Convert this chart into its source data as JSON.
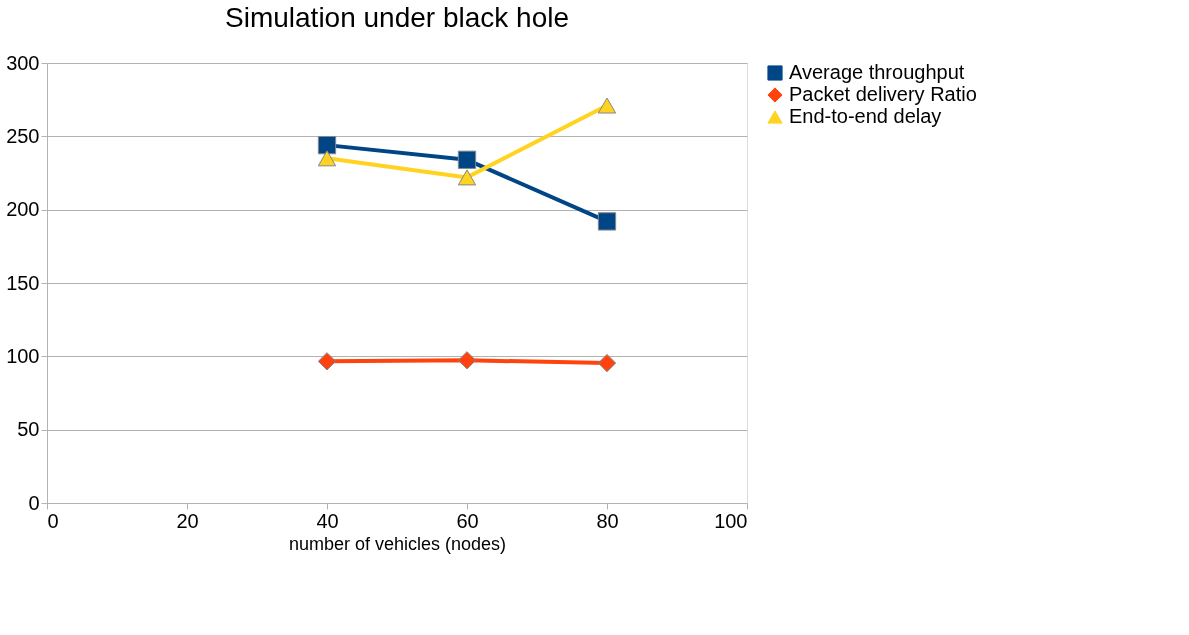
{
  "chart_data": {
    "type": "line",
    "title": "Simulation under black hole",
    "xlabel": "number of vehicles (nodes)",
    "xlim": [
      0,
      100
    ],
    "xticks": [
      0,
      20,
      40,
      60,
      80,
      100
    ],
    "ylim": [
      0,
      300
    ],
    "yticks": [
      0,
      50,
      100,
      150,
      200,
      250,
      300
    ],
    "grid": "y",
    "legend": "right",
    "line_style": "solid",
    "series": [
      {
        "name": "Average throughput",
        "color": "#004586",
        "marker": "square",
        "x": [
          40,
          60,
          80
        ],
        "values": [
          244,
          234,
          192
        ]
      },
      {
        "name": "Packet delivery Ratio",
        "color": "#ff420e",
        "marker": "diamond",
        "x": [
          40,
          60,
          80
        ],
        "values": [
          96.6,
          97.3,
          95.4
        ]
      },
      {
        "name": "End-to-end delay",
        "color": "#ffd320",
        "marker": "triangle",
        "x": [
          40,
          60,
          80
        ],
        "values": [
          235,
          222,
          271
        ]
      }
    ]
  }
}
